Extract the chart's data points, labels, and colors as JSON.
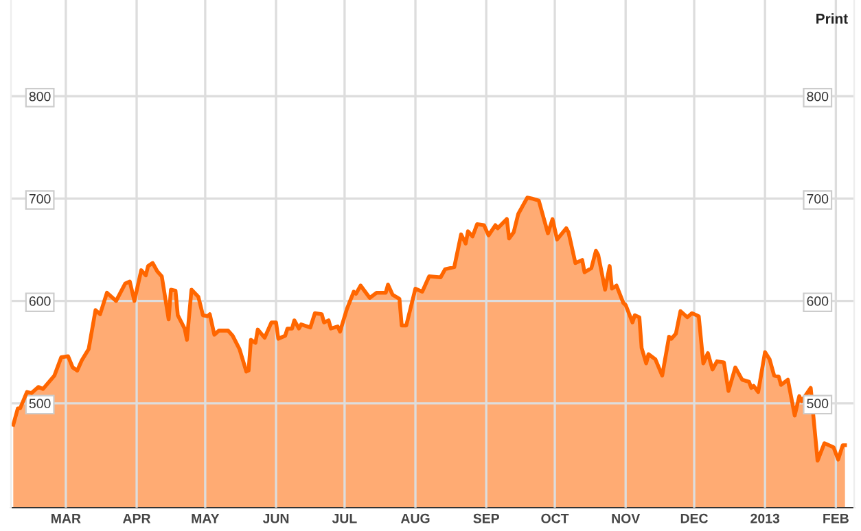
{
  "chart_data": {
    "type": "area",
    "x": [
      "2012-02-07",
      "2012-02-09",
      "2012-02-10",
      "2012-02-13",
      "2012-02-15",
      "2012-02-18",
      "2012-02-20",
      "2012-02-25",
      "2012-02-28",
      "2012-03-02",
      "2012-03-04",
      "2012-03-06",
      "2012-03-08",
      "2012-03-11",
      "2012-03-14",
      "2012-03-16",
      "2012-03-19",
      "2012-03-23",
      "2012-03-27",
      "2012-03-29",
      "2012-03-31",
      "2012-04-03",
      "2012-04-05",
      "2012-04-06",
      "2012-04-08",
      "2012-04-10",
      "2012-04-12",
      "2012-04-15",
      "2012-04-16",
      "2012-04-18",
      "2012-04-19",
      "2012-04-22",
      "2012-04-23",
      "2012-04-25",
      "2012-04-28",
      "2012-04-30",
      "2012-05-02",
      "2012-05-03",
      "2012-05-05",
      "2012-05-07",
      "2012-05-11",
      "2012-05-13",
      "2012-05-16",
      "2012-05-19",
      "2012-05-20",
      "2012-05-21",
      "2012-05-23",
      "2012-05-24",
      "2012-05-27",
      "2012-05-30",
      "2012-06-01",
      "2012-06-02",
      "2012-06-05",
      "2012-06-06",
      "2012-06-08",
      "2012-06-09",
      "2012-06-11",
      "2012-06-12",
      "2012-06-16",
      "2012-06-18",
      "2012-06-21",
      "2012-06-22",
      "2012-06-24",
      "2012-06-25",
      "2012-06-28",
      "2012-06-29",
      "2012-07-02",
      "2012-07-05",
      "2012-07-06",
      "2012-07-08",
      "2012-07-12",
      "2012-07-15",
      "2012-07-19",
      "2012-07-20",
      "2012-07-22",
      "2012-07-25",
      "2012-07-26",
      "2012-07-28",
      "2012-08-01",
      "2012-08-04",
      "2012-08-07",
      "2012-08-12",
      "2012-08-14",
      "2012-08-18",
      "2012-08-21",
      "2012-08-23",
      "2012-08-24",
      "2012-08-26",
      "2012-08-28",
      "2012-08-31",
      "2012-09-02",
      "2012-09-05",
      "2012-09-06",
      "2012-09-10",
      "2012-09-11",
      "2012-09-13",
      "2012-09-15",
      "2012-09-19",
      "2012-09-21",
      "2012-09-24",
      "2012-09-28",
      "2012-09-30",
      "2012-10-02",
      "2012-10-06",
      "2012-10-07",
      "2012-10-10",
      "2012-10-13",
      "2012-10-14",
      "2012-10-17",
      "2012-10-19",
      "2012-10-20",
      "2012-10-23",
      "2012-10-25",
      "2012-10-26",
      "2012-10-28",
      "2012-10-31",
      "2012-11-01",
      "2012-11-04",
      "2012-11-05",
      "2012-11-07",
      "2012-11-08",
      "2012-11-10",
      "2012-11-11",
      "2012-11-14",
      "2012-11-17",
      "2012-11-20",
      "2012-11-21",
      "2012-11-23",
      "2012-11-25",
      "2012-11-28",
      "2012-11-30",
      "2012-12-03",
      "2012-12-05",
      "2012-12-07",
      "2012-12-09",
      "2012-12-11",
      "2012-12-14",
      "2012-12-16",
      "2012-12-19",
      "2012-12-22",
      "2012-12-25",
      "2012-12-26",
      "2012-12-27",
      "2012-12-29",
      "2013-01-01",
      "2013-01-03",
      "2013-01-05",
      "2013-01-07",
      "2013-01-08",
      "2013-01-11",
      "2013-01-14",
      "2013-01-16",
      "2013-01-17",
      "2013-01-21",
      "2013-01-24",
      "2013-01-27",
      "2013-01-31",
      "2013-02-02",
      "2013-02-04",
      "2013-02-05"
    ],
    "series": [
      {
        "color": "#ff6600",
        "values": [
          479,
          495,
          495,
          511,
          510,
          516,
          514,
          527,
          545,
          546,
          535,
          532,
          542,
          553,
          591,
          587,
          608,
          600,
          617,
          619,
          600,
          630,
          625,
          634,
          637,
          629,
          624,
          582,
          611,
          610,
          586,
          573,
          562,
          611,
          604,
          586,
          585,
          587,
          567,
          571,
          571,
          566,
          553,
          531,
          532,
          562,
          559,
          572,
          564,
          579,
          579,
          563,
          566,
          573,
          573,
          581,
          573,
          577,
          574,
          588,
          587,
          579,
          581,
          573,
          575,
          570,
          592,
          609,
          607,
          615,
          603,
          608,
          608,
          616,
          606,
          602,
          576,
          576,
          612,
          609,
          624,
          623,
          631,
          633,
          665,
          656,
          668,
          663,
          675,
          674,
          664,
          674,
          671,
          680,
          661,
          667,
          685,
          701,
          700,
          698,
          666,
          680,
          660,
          671,
          667,
          637,
          640,
          628,
          632,
          649,
          645,
          611,
          634,
          612,
          615,
          598,
          596,
          579,
          586,
          584,
          554,
          539,
          548,
          543,
          527,
          565,
          563,
          568,
          590,
          584,
          588,
          585,
          539,
          549,
          533,
          541,
          540,
          512,
          535,
          523,
          521,
          515,
          517,
          511,
          550,
          543,
          527,
          526,
          518,
          523,
          488,
          507,
          502,
          515,
          444,
          461,
          457,
          445,
          459,
          459
        ]
      }
    ],
    "xlim": [
      "2012-02-06",
      "2013-02-09"
    ],
    "xticks": [
      {
        "value": "2012-03-01",
        "label": "MAR"
      },
      {
        "value": "2012-04-01",
        "label": "APR"
      },
      {
        "value": "2012-05-01",
        "label": "MAY"
      },
      {
        "value": "2012-06-01",
        "label": "JUN"
      },
      {
        "value": "2012-07-01",
        "label": "JUL"
      },
      {
        "value": "2012-08-01",
        "label": "AUG"
      },
      {
        "value": "2012-09-01",
        "label": "SEP"
      },
      {
        "value": "2012-10-01",
        "label": "OCT"
      },
      {
        "value": "2012-11-01",
        "label": "NOV"
      },
      {
        "value": "2012-12-01",
        "label": "DEC"
      },
      {
        "value": "2013-01-01",
        "label": "2013"
      },
      {
        "value": "2013-02-01",
        "label": "FEB"
      }
    ],
    "ylim": [
      398,
      894
    ],
    "yticks": [
      500,
      600,
      700,
      800
    ],
    "y2lim": [
      398,
      894
    ],
    "y2ticks": [
      500,
      600,
      700,
      800
    ],
    "grid": true,
    "annotations": [
      "Print"
    ]
  }
}
